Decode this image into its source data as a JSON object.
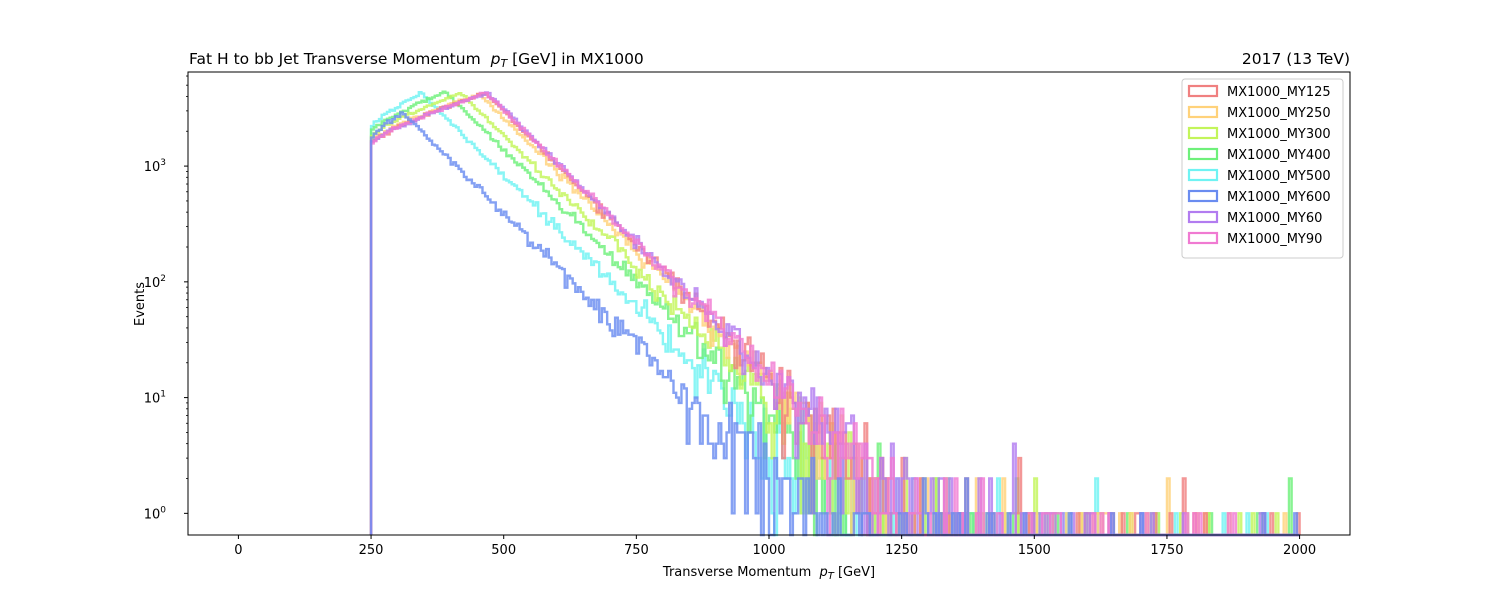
{
  "chart_data": {
    "type": "histogram-step",
    "title": "Fat H to bb Jet Transverse Momentum",
    "title_math": "p",
    "title_sub": "T",
    "title_suffix": " [GeV] in MX1000",
    "right_title": "2017 (13 TeV)",
    "xlabel": "Transverse Momentum",
    "xlabel_math": "p",
    "xlabel_sub": "T",
    "xlabel_suffix": " [GeV]",
    "ylabel": "Events",
    "xlim": [
      -95,
      2095
    ],
    "ylim": [
      0.65,
      6500
    ],
    "yscale": "log",
    "xticks": [
      0,
      250,
      500,
      750,
      1000,
      1250,
      1500,
      1750,
      2000
    ],
    "xtick_labels": [
      "0",
      "250",
      "500",
      "750",
      "1000",
      "1250",
      "1500",
      "1750",
      "2000"
    ],
    "yticks": [
      1,
      10,
      100,
      1000
    ],
    "ytick_labels": [
      "10",
      "10",
      "10",
      "10"
    ],
    "ytick_exps": [
      "0",
      "1",
      "2",
      "3"
    ],
    "legend_position": "top-right",
    "bin_start": 250,
    "bin_end": 2000,
    "bin_width": 5,
    "series": [
      {
        "name": "MX1000_MY125",
        "color": "#f08080",
        "peak_x": 465,
        "peak_y": 4300,
        "rise": 0.55
      },
      {
        "name": "MX1000_MY250",
        "color": "#ffd27a",
        "peak_x": 455,
        "peak_y": 4200,
        "rise": 0.5
      },
      {
        "name": "MX1000_MY300",
        "color": "#c3f55a",
        "peak_x": 420,
        "peak_y": 4300,
        "rise": 0.45
      },
      {
        "name": "MX1000_MY400",
        "color": "#6ef07a",
        "peak_x": 390,
        "peak_y": 4400,
        "rise": 0.4
      },
      {
        "name": "MX1000_MY500",
        "color": "#6ff3f3",
        "peak_x": 345,
        "peak_y": 4300,
        "rise": 0.3
      },
      {
        "name": "MX1000_MY600",
        "color": "#6a8cf0",
        "peak_x": 310,
        "peak_y": 2900,
        "rise": 0.15
      },
      {
        "name": "MX1000_MY60",
        "color": "#b27cf0",
        "peak_x": 470,
        "peak_y": 4300,
        "rise": 0.55
      },
      {
        "name": "MX1000_MY90",
        "color": "#f07ad2",
        "peak_x": 468,
        "peak_y": 4300,
        "rise": 0.55
      }
    ]
  }
}
